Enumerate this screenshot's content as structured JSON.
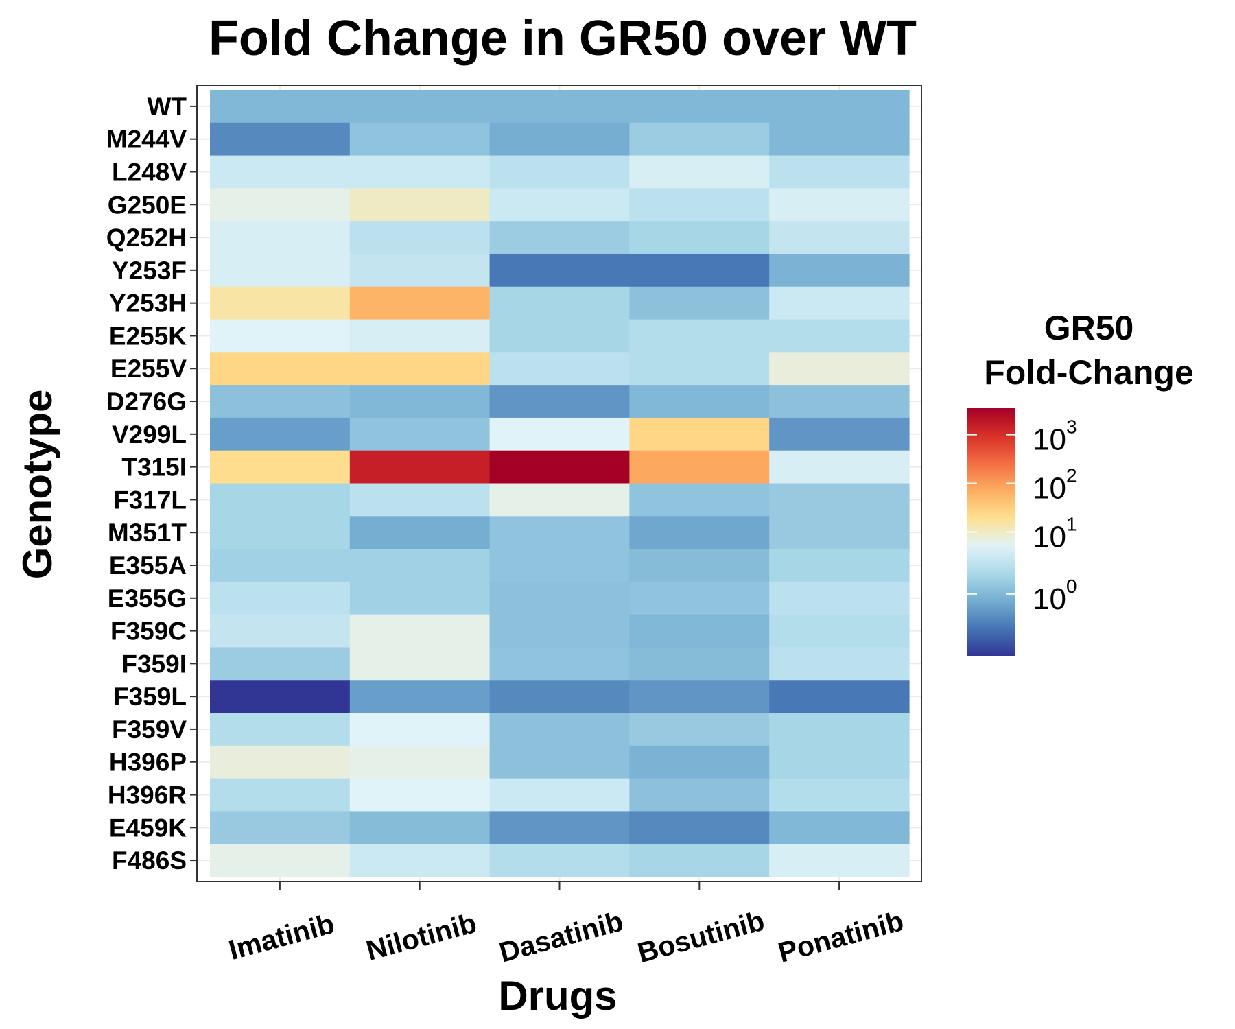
{
  "chart_data": {
    "type": "heatmap",
    "title": "Fold Change in GR50 over WT",
    "xlabel": "Drugs",
    "ylabel": "Genotype",
    "x_categories": [
      "Imatinib",
      "Nilotinib",
      "Dasatinib",
      "Bosutinib",
      "Ponatinib"
    ],
    "y_categories": [
      "WT",
      "M244V",
      "L248V",
      "G250E",
      "Q252H",
      "Y253F",
      "Y253H",
      "E255K",
      "E255V",
      "D276G",
      "V299L",
      "T315I",
      "F317L",
      "M351T",
      "E355A",
      "E355G",
      "F359C",
      "F359I",
      "F359L",
      "F359V",
      "H396P",
      "H396R",
      "E459K",
      "F486S"
    ],
    "values": [
      [
        1.0,
        1.0,
        1.0,
        1.0,
        1.0
      ],
      [
        0.4,
        1.3,
        0.8,
        1.6,
        1.0
      ],
      [
        4.0,
        4.0,
        3.0,
        5.0,
        3.0
      ],
      [
        7.0,
        10.0,
        4.0,
        3.0,
        5.0
      ],
      [
        5.0,
        3.0,
        1.6,
        2.0,
        3.5
      ],
      [
        5.0,
        3.5,
        0.3,
        0.3,
        0.9
      ],
      [
        15.0,
        60.0,
        2.0,
        1.2,
        4.0
      ],
      [
        6.0,
        5.0,
        2.0,
        2.5,
        2.5
      ],
      [
        25.0,
        25.0,
        3.0,
        2.5,
        8.0
      ],
      [
        1.2,
        1.0,
        0.5,
        1.0,
        1.2
      ],
      [
        0.6,
        1.3,
        6.0,
        25.0,
        0.5
      ],
      [
        20.0,
        1500.0,
        3500.0,
        80.0,
        5.0
      ],
      [
        2.0,
        3.0,
        7.0,
        1.3,
        1.5
      ],
      [
        2.0,
        0.8,
        1.3,
        0.7,
        1.5
      ],
      [
        1.8,
        1.8,
        1.3,
        1.1,
        2.0
      ],
      [
        3.0,
        1.8,
        1.2,
        1.3,
        3.0
      ],
      [
        3.5,
        7.0,
        1.2,
        1.0,
        2.5
      ],
      [
        1.6,
        7.0,
        1.3,
        1.1,
        3.0
      ],
      [
        0.1,
        0.6,
        0.4,
        0.5,
        0.3
      ],
      [
        2.5,
        6.0,
        1.2,
        1.5,
        2.0
      ],
      [
        8.0,
        7.0,
        1.2,
        0.9,
        2.0
      ],
      [
        2.5,
        6.0,
        4.0,
        1.2,
        2.5
      ],
      [
        1.5,
        1.1,
        0.5,
        0.4,
        1.0
      ],
      [
        7.0,
        4.0,
        2.5,
        2.0,
        5.0
      ]
    ],
    "legend": {
      "title_lines": [
        "GR50",
        "Fold-Change"
      ],
      "ticks": [
        {
          "base": "10",
          "exp": "3",
          "value": 1000
        },
        {
          "base": "10",
          "exp": "2",
          "value": 100
        },
        {
          "base": "10",
          "exp": "1",
          "value": 10
        },
        {
          "base": "10",
          "exp": "0",
          "value": 1
        }
      ],
      "range": [
        0.1,
        3500
      ],
      "scale": "log10",
      "placement": "right"
    },
    "color_scale": [
      "#313695",
      "#4575b4",
      "#74add1",
      "#abd9e9",
      "#e0f3f8",
      "#fee090",
      "#fdae61",
      "#f46d43",
      "#d73027",
      "#a50026"
    ],
    "color_midpoint": 10,
    "grid": true
  }
}
